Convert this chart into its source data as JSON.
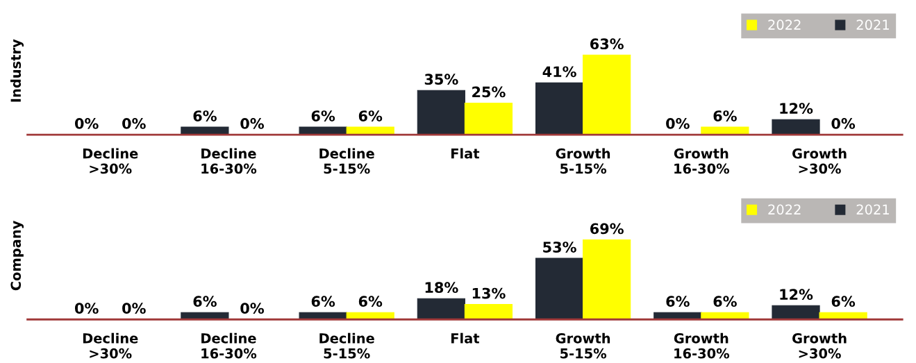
{
  "chart_data": [
    {
      "type": "bar",
      "ylabel": "Industry",
      "categories": [
        "Decline\n>30%",
        "Decline\n16-30%",
        "Decline\n5-15%",
        "Flat",
        "Growth\n5-15%",
        "Growth\n16-30%",
        "Growth\n>30%"
      ],
      "series": [
        {
          "name": "2021",
          "color": "#232a35",
          "values": [
            0,
            6,
            6,
            35,
            41,
            0,
            12
          ],
          "value_labels": [
            "0%",
            "6%",
            "6%",
            "35%",
            "41%",
            "0%",
            "12%"
          ]
        },
        {
          "name": "2022",
          "color": "#ffff00",
          "values": [
            0,
            0,
            6,
            25,
            63,
            6,
            0
          ],
          "value_labels": [
            "0%",
            "0%",
            "6%",
            "25%",
            "63%",
            "6%",
            "0%"
          ]
        }
      ],
      "legend": "top right",
      "grid": false
    },
    {
      "type": "bar",
      "ylabel": "Company",
      "categories": [
        "Decline\n>30%",
        "Decline\n16-30%",
        "Decline\n5-15%",
        "Flat",
        "Growth\n5-15%",
        "Growth\n16-30%",
        "Growth\n>30%"
      ],
      "series": [
        {
          "name": "2021",
          "color": "#232a35",
          "values": [
            0,
            6,
            6,
            18,
            53,
            6,
            12
          ],
          "value_labels": [
            "0%",
            "6%",
            "6%",
            "18%",
            "53%",
            "6%",
            "12%"
          ]
        },
        {
          "name": "2022",
          "color": "#ffff00",
          "values": [
            0,
            0,
            6,
            13,
            69,
            6,
            6
          ],
          "value_labels": [
            "0%",
            "0%",
            "6%",
            "13%",
            "69%",
            "6%",
            "6%"
          ]
        }
      ],
      "legend": "top right",
      "grid": false
    }
  ]
}
